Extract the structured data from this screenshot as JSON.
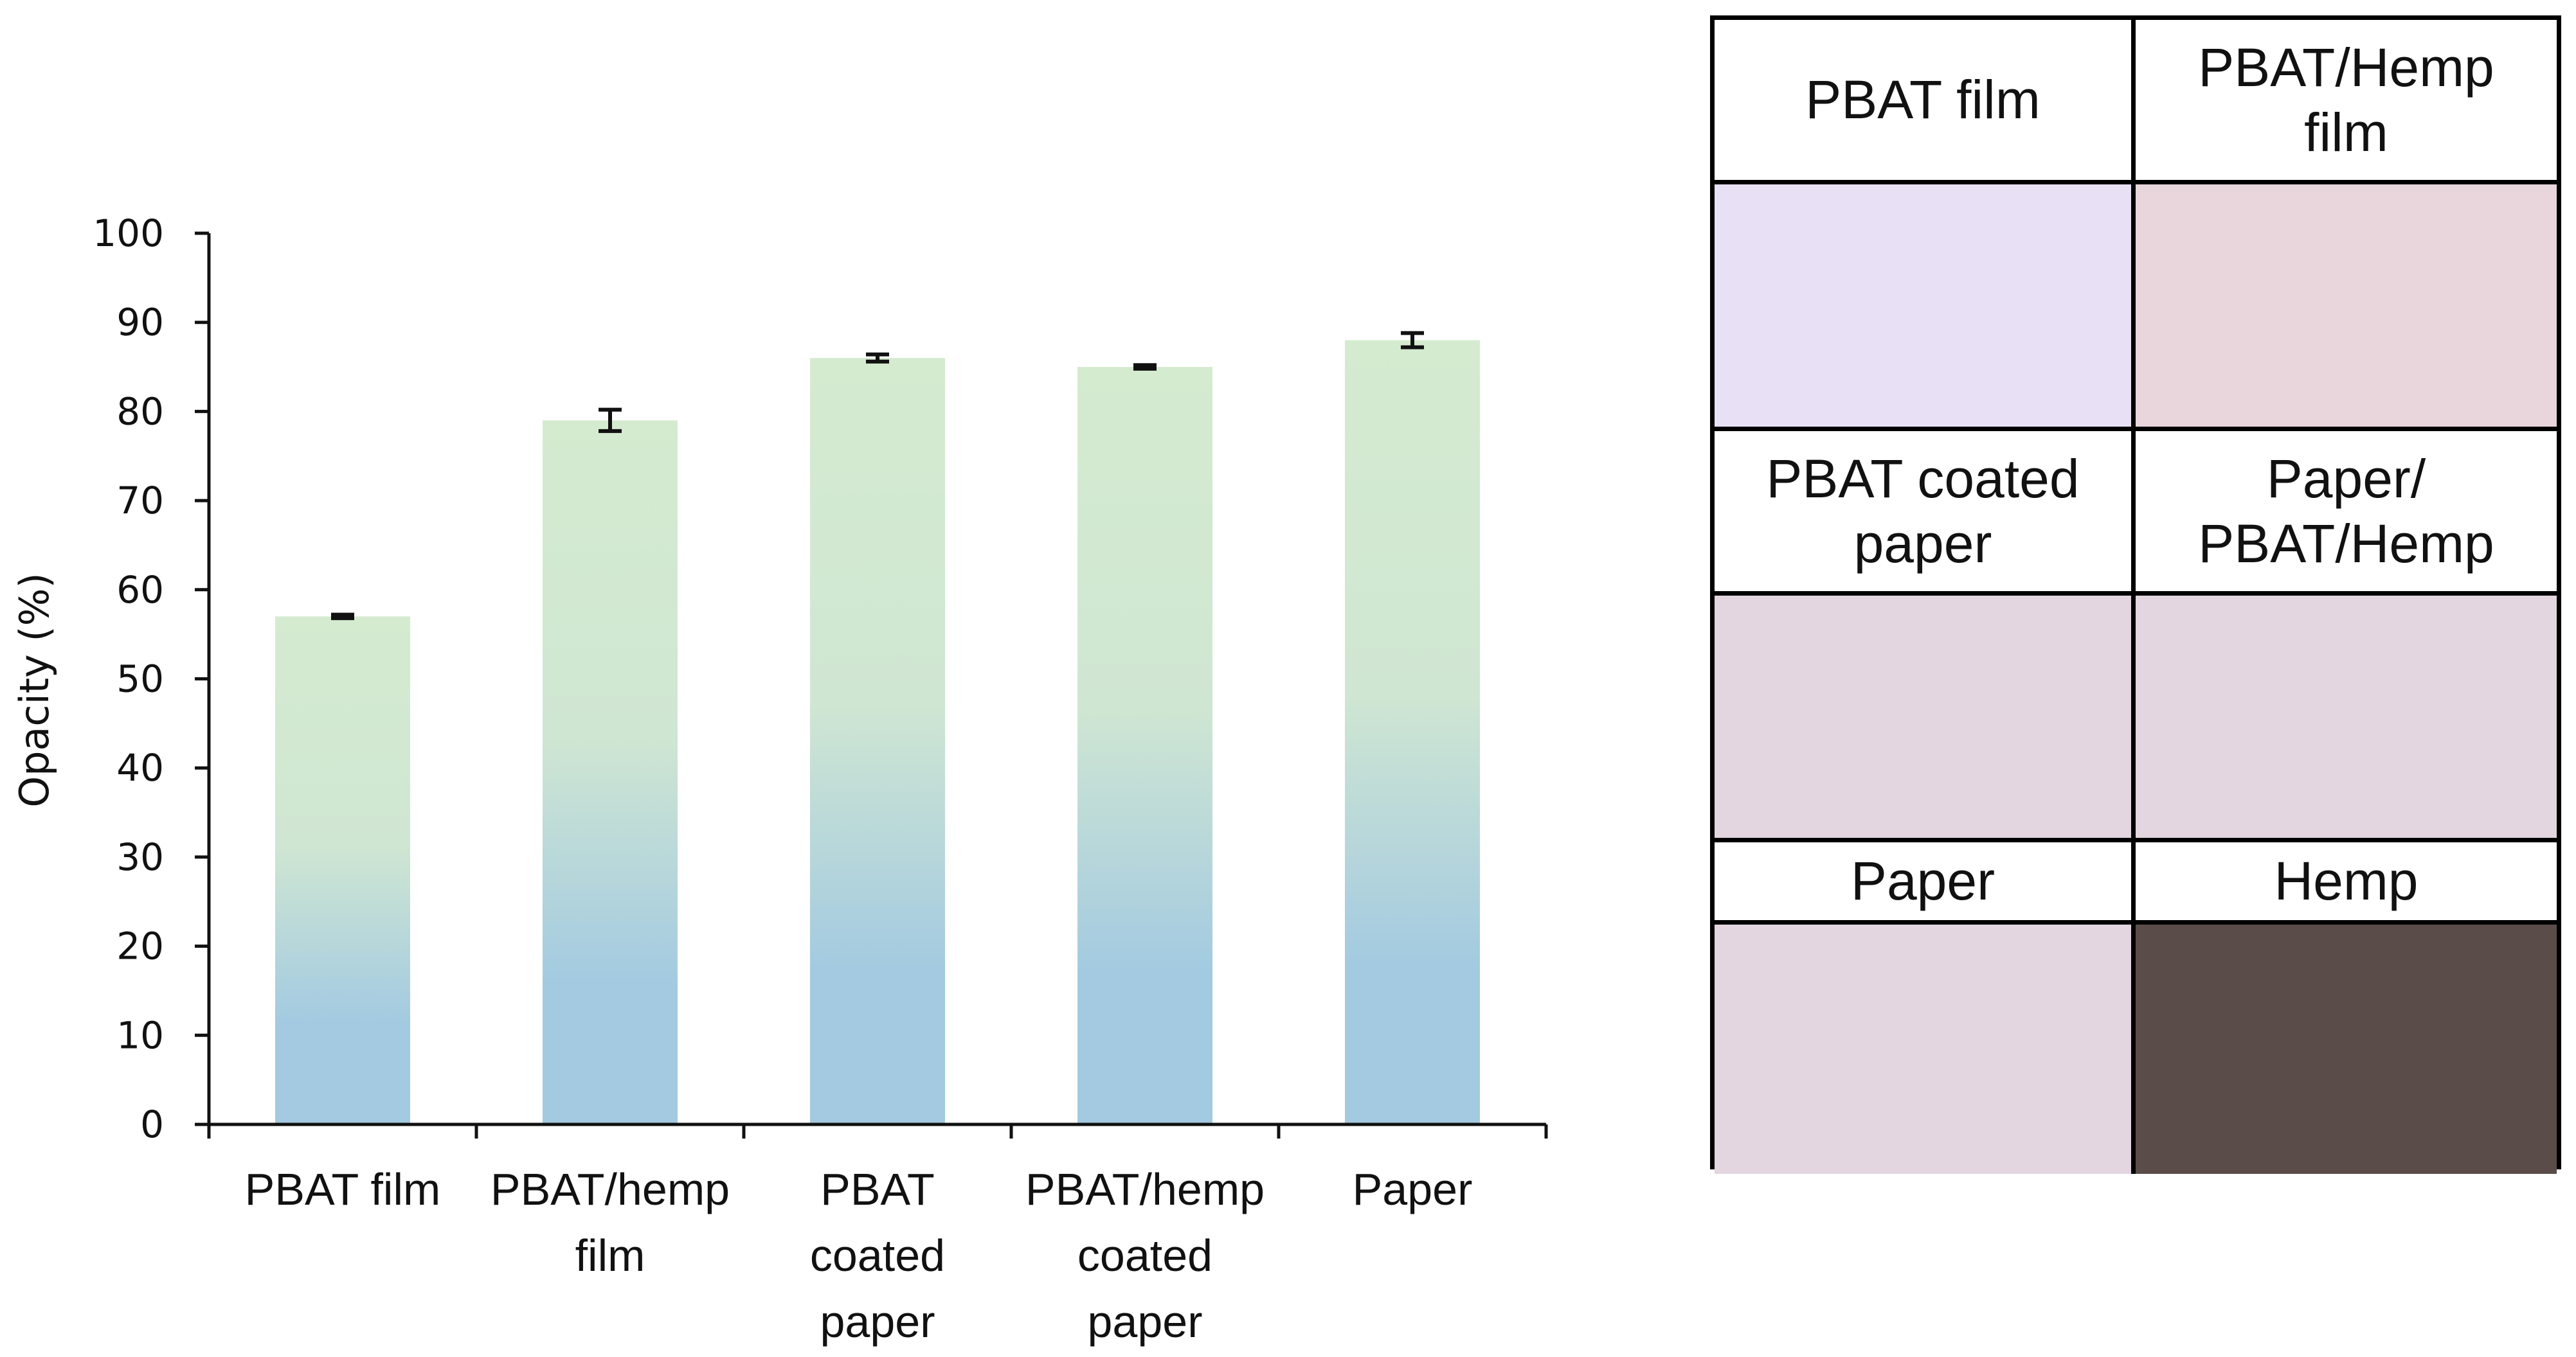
{
  "chart_data": {
    "type": "bar",
    "title": "",
    "xlabel": "",
    "ylabel": "Opacity (%)",
    "ylim": [
      0,
      100
    ],
    "yticks": [
      0,
      10,
      20,
      30,
      40,
      50,
      60,
      70,
      80,
      90,
      100
    ],
    "categories": [
      "PBAT film",
      "PBAT/hemp film",
      "PBAT coated paper",
      "PBAT/hemp coated paper",
      "Paper"
    ],
    "category_lines": [
      [
        "PBAT film"
      ],
      [
        "PBAT/hemp",
        "film"
      ],
      [
        "PBAT",
        "coated",
        "paper"
      ],
      [
        "PBAT/hemp",
        "coated",
        "paper"
      ],
      [
        "Paper"
      ]
    ],
    "values": [
      57,
      79,
      86,
      85,
      88
    ],
    "errors": [
      0.2,
      1.2,
      0.4,
      0.2,
      0.8
    ],
    "bar_gradient": {
      "top": "#d5ebd0",
      "bottom": "#a3cae1"
    },
    "grid": false,
    "legend": "none"
  },
  "swatch_table": {
    "cells": [
      {
        "label": "PBAT film",
        "color": "#e8e0f4"
      },
      {
        "label": "PBAT/Hemp film",
        "color": "#e8d6dc"
      },
      {
        "label": "PBAT coated paper",
        "color": "#e3d6e0"
      },
      {
        "label": "Paper/ PBAT/Hemp",
        "color": "#e3d6e0"
      },
      {
        "label": "Paper",
        "color": "#e3d6e0"
      },
      {
        "label": "Hemp",
        "color": "#5a4d49"
      }
    ]
  }
}
